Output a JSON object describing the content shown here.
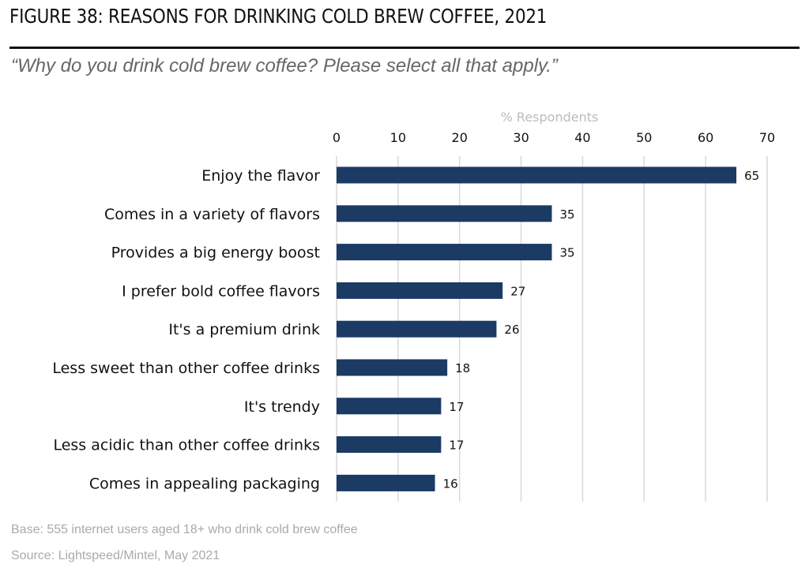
{
  "title": "FIGURE 38: REASONS FOR DRINKING COLD BREW COFFEE, 2021",
  "subtitle": "“Why do you drink cold brew coffee? Please select all that apply.”",
  "base_note": "Base: 555 internet users aged 18+ who drink cold brew coffee",
  "source_note": "Source: Lightspeed/Mintel, May 2021",
  "chart_data": {
    "type": "bar",
    "orientation": "horizontal",
    "xlabel": "% Respondents",
    "xlim": [
      0,
      70
    ],
    "ticks": [
      0,
      10,
      20,
      30,
      40,
      50,
      60,
      70
    ],
    "grid": true,
    "axis_position": "top",
    "categories": [
      "Enjoy the flavor",
      "Comes in a variety of flavors",
      "Provides a big energy boost",
      "I prefer bold coffee flavors",
      "It's a premium drink",
      "Less sweet than other coffee drinks",
      "It's trendy",
      "Less acidic than other coffee drinks",
      "Comes in appealing packaging"
    ],
    "values": [
      65,
      35,
      35,
      27,
      26,
      18,
      17,
      17,
      16
    ],
    "bar_color": "#1b3a64"
  }
}
